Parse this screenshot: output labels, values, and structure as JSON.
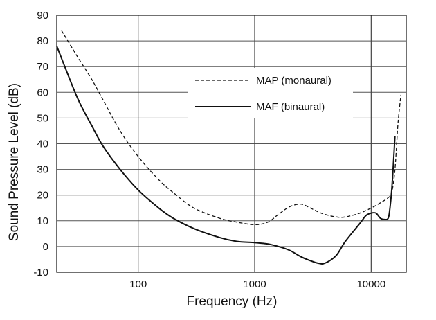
{
  "chart_data": {
    "type": "line",
    "title": "",
    "xlabel": "Frequency (Hz)",
    "ylabel": "Sound Pressure Level (dB)",
    "x_scale": "log",
    "xlim": [
      20,
      20000
    ],
    "ylim": [
      -10,
      90
    ],
    "x_ticks": [
      100,
      1000,
      10000
    ],
    "x_tick_labels": [
      "100",
      "1000",
      "10000"
    ],
    "y_ticks": [
      -10,
      0,
      10,
      20,
      30,
      40,
      50,
      60,
      70,
      80,
      90
    ],
    "y_tick_labels": [
      "-10",
      "0",
      "10",
      "20",
      "30",
      "40",
      "50",
      "60",
      "70",
      "80",
      "90"
    ],
    "x_minor_gridlines": [
      20,
      10000
    ],
    "grid": true,
    "legend_position": "center-right",
    "series": [
      {
        "name": "MAP (monaural)",
        "style": "dashed",
        "color": "#111111",
        "x": [
          22,
          30,
          40,
          50,
          70,
          100,
          150,
          200,
          300,
          500,
          700,
          1000,
          1300,
          1600,
          2000,
          2500,
          3000,
          3500,
          4000,
          5000,
          6000,
          8000,
          10000,
          12000,
          14000,
          15000,
          16000,
          17000,
          18000
        ],
        "y": [
          84,
          74,
          65,
          57,
          45,
          35,
          26,
          21,
          15,
          11,
          9.5,
          8.5,
          9.5,
          12.5,
          15.5,
          16.5,
          15,
          13.5,
          12.5,
          11.5,
          11.5,
          13,
          15,
          17,
          19,
          21,
          30,
          48,
          59
        ]
      },
      {
        "name": "MAF (binaural)",
        "style": "solid",
        "color": "#111111",
        "x": [
          20,
          30,
          40,
          50,
          70,
          100,
          150,
          200,
          300,
          500,
          700,
          1000,
          1300,
          1600,
          2000,
          2500,
          3000,
          3500,
          4000,
          5000,
          6000,
          8000,
          9000,
          10000,
          11000,
          12000,
          13000,
          14000,
          14500,
          15000,
          15500,
          16000
        ],
        "y": [
          78,
          58,
          47,
          39,
          30,
          22,
          15,
          11,
          7,
          3.5,
          2,
          1.5,
          1,
          0,
          -1.5,
          -4,
          -5.5,
          -6.5,
          -6.5,
          -3.5,
          2,
          9,
          12,
          13,
          13,
          11,
          10.5,
          11,
          15,
          22,
          32,
          43
        ]
      }
    ]
  }
}
